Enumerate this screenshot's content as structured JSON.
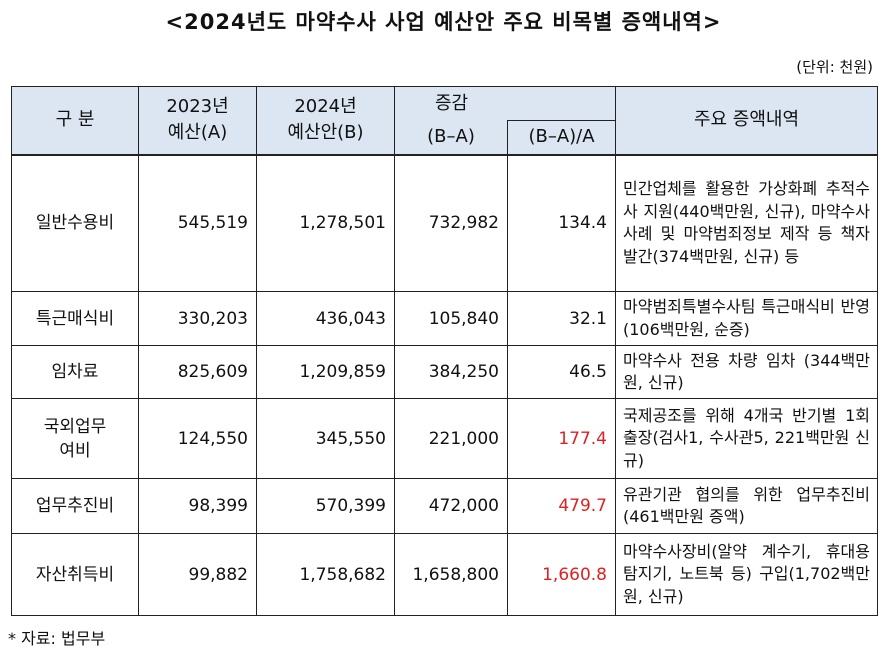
{
  "title": "<2024년도 마약수사 사업 예산안 주요 비목별 증액내역>",
  "unit": "(단위: 천원)",
  "table": {
    "headers": {
      "category": "구  분",
      "y2023_line1": "2023년",
      "y2023_line2": "예산(A)",
      "y2024_line1": "2024년",
      "y2024_line2": "예산안(B)",
      "change": "증감",
      "change_amount": "(B–A)",
      "change_rate": "(B–A)/A",
      "details": "주요 증액내역"
    },
    "rows": [
      {
        "category": "일반수용비",
        "budget_2023": "545,519",
        "budget_2024": "1,278,501",
        "change": "732,982",
        "rate": "134.4",
        "details": "민간업체를 활용한 가상화폐 추적수사 지원(440백만원, 신규), 마약수사사례 및 마약범죄정보 제작 등 책자 발간(374백만원, 신규) 등"
      },
      {
        "category": "특근매식비",
        "budget_2023": "330,203",
        "budget_2024": "436,043",
        "change": "105,840",
        "rate": "32.1",
        "details": "마약범죄특별수사팀 특근매식비 반영(106백만원, 순증)"
      },
      {
        "category": "임차료",
        "budget_2023": "825,609",
        "budget_2024": "1,209,859",
        "change": "384,250",
        "rate": "46.5",
        "details": "마약수사 전용 차량 임차 (344백만원, 신규)"
      },
      {
        "category": "국외업무여비",
        "category_line1": "국외업무",
        "category_line2": "여비",
        "budget_2023": "124,550",
        "budget_2024": "345,550",
        "change": "221,000",
        "rate": "177.4",
        "details": "국제공조를 위해 4개국 반기별 1회 출장(검사1, 수사관5, 221백만원 신규)"
      },
      {
        "category": "업무추진비",
        "budget_2023": "98,399",
        "budget_2024": "570,399",
        "change": "472,000",
        "rate": "479.7",
        "details": "유관기관 협의를 위한 업무추진비(461백만원 증액)"
      },
      {
        "category": "자산취득비",
        "budget_2023": "99,882",
        "budget_2024": "1,758,682",
        "change": "1,658,800",
        "rate": "1,660.8",
        "details": "마약수사장비(알약 계수기, 휴대용 탐지기, 노트북 등) 구입(1,702백만원, 신규)"
      }
    ]
  },
  "source": "* 자료: 법무부",
  "colors": {
    "header_bg": "#dce6f2",
    "highlight": "#e02020"
  }
}
